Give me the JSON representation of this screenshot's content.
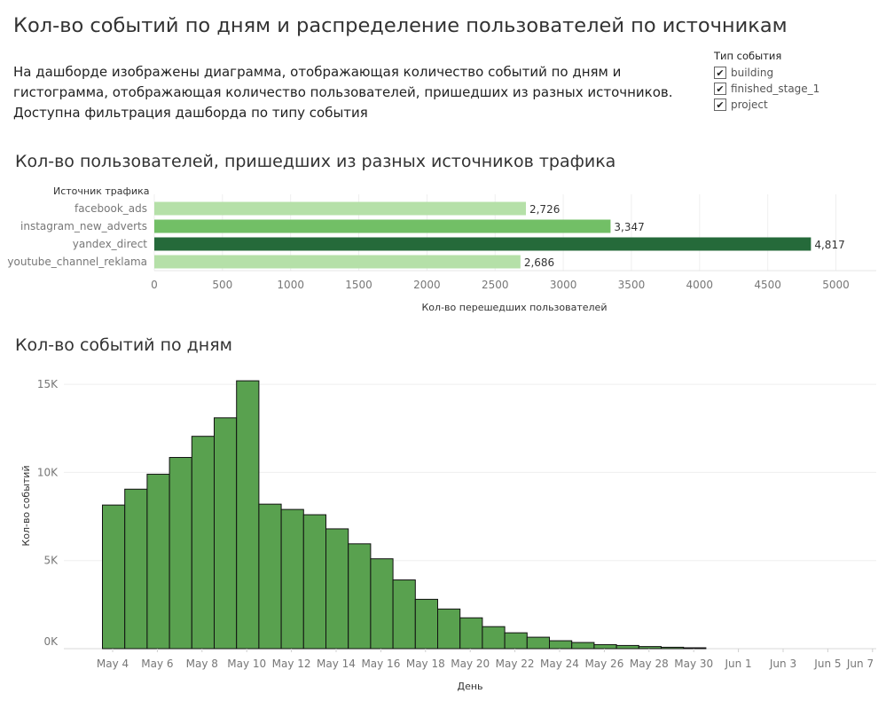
{
  "header": {
    "title": "Кол-во событий по дням и распределение пользователей по источникам",
    "description": "На дашборде изображены диаграмма, отображающая количество событий по дням и гистограмма, отображающая количество пользователей, пришедших из разных источников. Доступна фильтрация дашборда по типу события"
  },
  "filter": {
    "title": "Тип события",
    "items": [
      {
        "label": "building",
        "checked": true
      },
      {
        "label": "finished_stage_1",
        "checked": true
      },
      {
        "label": "project",
        "checked": true
      }
    ]
  },
  "sources_section": {
    "title": "Кол-во пользователей, пришедших из разных источников трафика"
  },
  "days_section": {
    "title": "Кол-во событий по дням"
  },
  "chart_data": [
    {
      "type": "bar",
      "orientation": "horizontal",
      "categories_title": "Источник трафика",
      "categories": [
        "facebook_ads",
        "instagram_new_adverts",
        "yandex_direct",
        "youtube_channel_reklama"
      ],
      "values": [
        2726,
        3347,
        4817,
        2686
      ],
      "value_labels": [
        "2,726",
        "3,347",
        "4,817",
        "2,686"
      ],
      "colors": [
        "#b5e0a8",
        "#72bf66",
        "#256a3a",
        "#b5e0a8"
      ],
      "xlabel": "Кол-во перешедших пользователей",
      "xticks": [
        "0",
        "500",
        "1000",
        "1500",
        "2000",
        "2500",
        "3000",
        "3500",
        "4000",
        "4500",
        "5000"
      ],
      "xlim": [
        0,
        5200
      ],
      "grid": true
    },
    {
      "type": "bar",
      "orientation": "vertical",
      "xlabel": "День",
      "ylabel": "Кол-во событий",
      "yticks": [
        "0K",
        "5K",
        "10K",
        "15K"
      ],
      "ylim": [
        0,
        15600
      ],
      "xticks": [
        "May 4",
        "May 6",
        "May 8",
        "May 10",
        "May 12",
        "May 14",
        "May 16",
        "May 18",
        "May 20",
        "May 22",
        "May 24",
        "May 26",
        "May 28",
        "May 30",
        "Jun 1",
        "Jun 3",
        "Jun 5",
        "Jun 7"
      ],
      "x": [
        "2019-05-04",
        "2019-05-05",
        "2019-05-06",
        "2019-05-07",
        "2019-05-08",
        "2019-05-09",
        "2019-05-10",
        "2019-05-11",
        "2019-05-12",
        "2019-05-13",
        "2019-05-14",
        "2019-05-15",
        "2019-05-16",
        "2019-05-17",
        "2019-05-18",
        "2019-05-19",
        "2019-05-20",
        "2019-05-21",
        "2019-05-22",
        "2019-05-23",
        "2019-05-24",
        "2019-05-25",
        "2019-05-26",
        "2019-05-27",
        "2019-05-28",
        "2019-05-29",
        "2019-05-30",
        "2019-05-31",
        "2019-06-01",
        "2019-06-02",
        "2019-06-03",
        "2019-06-04",
        "2019-06-05"
      ],
      "values": [
        8150,
        9050,
        9900,
        10850,
        12050,
        13100,
        15200,
        8200,
        7900,
        7600,
        6800,
        5950,
        5100,
        3900,
        2800,
        2250,
        1750,
        1250,
        900,
        650,
        450,
        350,
        230,
        180,
        120,
        80,
        50,
        10,
        0,
        0,
        0,
        0,
        0
      ],
      "bar_color": "#59a14f",
      "grid": true
    }
  ]
}
